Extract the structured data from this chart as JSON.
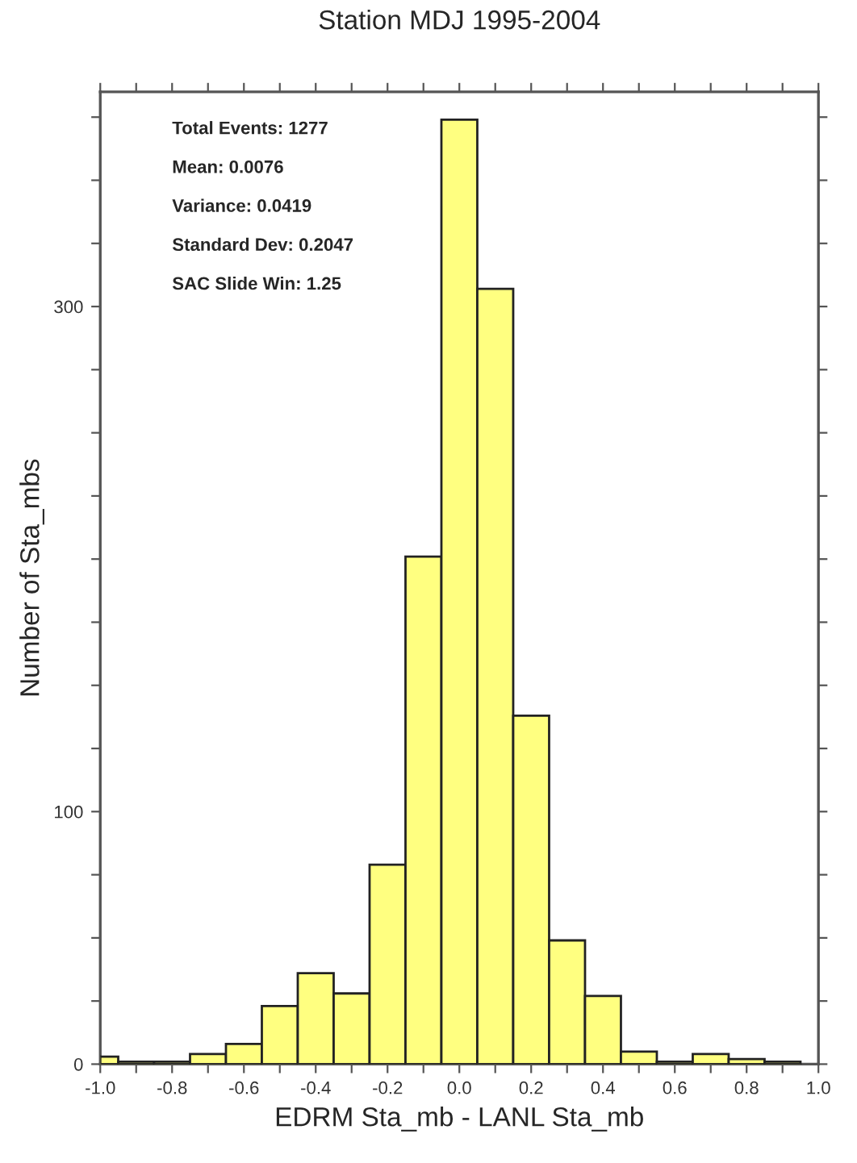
{
  "chart_data": {
    "type": "histogram",
    "title": "Station MDJ 1995-2004",
    "xlabel": "EDRM Sta_mb - LANL Sta_mb",
    "ylabel": "Number of Sta_mbs",
    "bins": [
      -1.0,
      -0.95,
      -0.85,
      -0.75,
      -0.65,
      -0.55,
      -0.45,
      -0.35,
      -0.25,
      -0.15,
      -0.05,
      0.05,
      0.15,
      0.25,
      0.35,
      0.45,
      0.55,
      0.65,
      0.75,
      0.85,
      0.95
    ],
    "values": [
      3,
      1,
      1,
      4,
      8,
      23,
      36,
      28,
      79,
      201,
      374,
      307,
      138,
      49,
      27,
      5,
      1,
      4,
      2,
      1
    ],
    "color": "#ffff80",
    "xlim": [
      -1.0,
      1.0
    ],
    "xticks": [
      {
        "value": -1.0,
        "label": "-1.0"
      },
      {
        "value": -0.9,
        "label": null
      },
      {
        "value": -0.8,
        "label": "-0.8"
      },
      {
        "value": -0.7,
        "label": null
      },
      {
        "value": -0.6,
        "label": "-0.6"
      },
      {
        "value": -0.5,
        "label": null
      },
      {
        "value": -0.4,
        "label": "-0.4"
      },
      {
        "value": -0.3,
        "label": null
      },
      {
        "value": -0.2,
        "label": "-0.2"
      },
      {
        "value": -0.1,
        "label": null
      },
      {
        "value": 0.0,
        "label": "0.0"
      },
      {
        "value": 0.1,
        "label": null
      },
      {
        "value": 0.2,
        "label": "0.2"
      },
      {
        "value": 0.3,
        "label": null
      },
      {
        "value": 0.4,
        "label": "0.4"
      },
      {
        "value": 0.5,
        "label": null
      },
      {
        "value": 0.6,
        "label": "0.6"
      },
      {
        "value": 0.7,
        "label": null
      },
      {
        "value": 0.8,
        "label": "0.8"
      },
      {
        "value": 0.9,
        "label": null
      },
      {
        "value": 1.0,
        "label": "1.0"
      }
    ],
    "ylim": [
      0,
      385
    ],
    "yticks": [
      0,
      {
        "value": 25,
        "label": null
      },
      {
        "value": 50,
        "label": null
      },
      {
        "value": 75,
        "label": null
      },
      100,
      {
        "value": 125,
        "label": null
      },
      {
        "value": 150,
        "label": null
      },
      {
        "value": 175,
        "label": null
      },
      {
        "value": 200,
        "label": null
      },
      {
        "value": 225,
        "label": null
      },
      {
        "value": 250,
        "label": null
      },
      {
        "value": 275,
        "label": null
      },
      300,
      {
        "value": 325,
        "label": null
      },
      {
        "value": 350,
        "label": null
      },
      {
        "value": 375,
        "label": null
      }
    ],
    "grid": false,
    "annotations": [
      "Total Events: 1277",
      "Mean: 0.0076",
      "Variance: 0.0419",
      "Standard Dev: 0.2047",
      "SAC Slide Win: 1.25"
    ]
  }
}
